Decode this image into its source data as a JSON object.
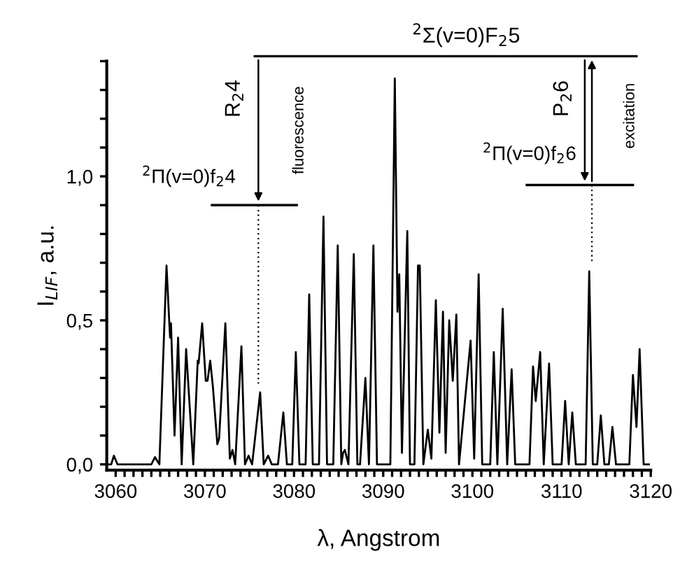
{
  "chart_data": {
    "type": "line",
    "xlabel": "λ, Angstrom",
    "ylabel": "I$_{LIF}$, a.u.",
    "annotations": [
      "$^{2}$Σ(v=0)F$_{2}$5",
      "R$_{2}$4",
      "fluorescence",
      "$^{2}$Π(v=0)f$_{2}$4",
      "P$_{2}$6",
      "excitation",
      "$^{2}$Π(v=0)f$_{2}$6"
    ],
    "xlim": [
      3059,
      3120
    ],
    "ylim": [
      -0.02,
      1.4
    ],
    "xticks": [
      3060,
      {
        "value": 3061,
        "label": null
      },
      {
        "value": 3062,
        "label": null
      },
      {
        "value": 3063,
        "label": null
      },
      {
        "value": 3064,
        "label": null
      },
      {
        "value": 3065,
        "label": null
      },
      {
        "value": 3066,
        "label": null
      },
      {
        "value": 3067,
        "label": null
      },
      {
        "value": 3068,
        "label": null
      },
      {
        "value": 3069,
        "label": null
      },
      3070,
      {
        "value": 3071,
        "label": null
      },
      {
        "value": 3072,
        "label": null
      },
      {
        "value": 3073,
        "label": null
      },
      {
        "value": 3074,
        "label": null
      },
      {
        "value": 3075,
        "label": null
      },
      {
        "value": 3076,
        "label": null
      },
      {
        "value": 3077,
        "label": null
      },
      {
        "value": 3078,
        "label": null
      },
      {
        "value": 3079,
        "label": null
      },
      3080,
      {
        "value": 3081,
        "label": null
      },
      {
        "value": 3082,
        "label": null
      },
      {
        "value": 3083,
        "label": null
      },
      {
        "value": 3084,
        "label": null
      },
      {
        "value": 3085,
        "label": null
      },
      {
        "value": 3086,
        "label": null
      },
      {
        "value": 3087,
        "label": null
      },
      {
        "value": 3088,
        "label": null
      },
      {
        "value": 3089,
        "label": null
      },
      3090,
      {
        "value": 3091,
        "label": null
      },
      {
        "value": 3092,
        "label": null
      },
      {
        "value": 3093,
        "label": null
      },
      {
        "value": 3094,
        "label": null
      },
      {
        "value": 3095,
        "label": null
      },
      {
        "value": 3096,
        "label": null
      },
      {
        "value": 3097,
        "label": null
      },
      {
        "value": 3098,
        "label": null
      },
      {
        "value": 3099,
        "label": null
      },
      3100,
      {
        "value": 3101,
        "label": null
      },
      {
        "value": 3102,
        "label": null
      },
      {
        "value": 3103,
        "label": null
      },
      {
        "value": 3104,
        "label": null
      },
      {
        "value": 3105,
        "label": null
      },
      {
        "value": 3106,
        "label": null
      },
      {
        "value": 3107,
        "label": null
      },
      {
        "value": 3108,
        "label": null
      },
      {
        "value": 3109,
        "label": null
      },
      3110,
      {
        "value": 3111,
        "label": null
      },
      {
        "value": 3112,
        "label": null
      },
      {
        "value": 3113,
        "label": null
      },
      {
        "value": 3114,
        "label": null
      },
      {
        "value": 3115,
        "label": null
      },
      {
        "value": 3116,
        "label": null
      },
      {
        "value": 3117,
        "label": null
      },
      {
        "value": 3118,
        "label": null
      },
      {
        "value": 3119,
        "label": null
      },
      3120
    ],
    "yticks": [
      {
        "value": 0,
        "label": "0,0"
      },
      {
        "value": 0.1,
        "label": null
      },
      {
        "value": 0.2,
        "label": null
      },
      {
        "value": 0.3,
        "label": null
      },
      {
        "value": 0.4,
        "label": null
      },
      {
        "value": 0.5,
        "label": "0,5"
      },
      {
        "value": 0.6,
        "label": null
      },
      {
        "value": 0.7,
        "label": null
      },
      {
        "value": 0.8,
        "label": null
      },
      {
        "value": 0.9,
        "label": null
      },
      {
        "value": 1.0,
        "label": "1,0"
      },
      {
        "value": 1.1,
        "label": null
      },
      {
        "value": 1.2,
        "label": null
      },
      {
        "value": 1.3,
        "label": null
      },
      {
        "value": 1.4,
        "label": null
      }
    ],
    "grid": false,
    "legend": false,
    "marker": "none",
    "line_style": "solid",
    "series": [
      {
        "color": "#000000",
        "x": [
          3059.0,
          3059.5,
          3059.8,
          3060.2,
          3064.0,
          3064.4,
          3064.9,
          3065.7,
          3066.0,
          3066.1,
          3066.2,
          3066.6,
          3067.0,
          3067.4,
          3067.9,
          3068.7,
          3069.2,
          3069.3,
          3069.7,
          3070.1,
          3070.3,
          3070.6,
          3070.9,
          3071.4,
          3071.6,
          3072.3,
          3072.8,
          3073.1,
          3073.4,
          3074.1,
          3074.5,
          3074.9,
          3075.3,
          3076.2,
          3076.6,
          3077.1,
          3077.5,
          3078.2,
          3078.8,
          3079.2,
          3079.8,
          3080.2,
          3080.6,
          3081.3,
          3081.7,
          3082.1,
          3082.8,
          3083.3,
          3083.7,
          3084.4,
          3084.9,
          3085.3,
          3085.5,
          3085.7,
          3086.1,
          3086.7,
          3087.1,
          3087.4,
          3088.0,
          3088.4,
          3088.9,
          3089.3,
          3090.8,
          3091.3,
          3091.6,
          3091.8,
          3092.1,
          3092.7,
          3093.0,
          3093.5,
          3093.9,
          3094.1,
          3094.5,
          3095.0,
          3095.4,
          3095.9,
          3096.3,
          3096.7,
          3097.0,
          3097.4,
          3097.8,
          3098.2,
          3098.5,
          3099.8,
          3100.2,
          3100.7,
          3101.1,
          3102.0,
          3102.4,
          3102.8,
          3103.4,
          3103.9,
          3104.4,
          3104.8,
          3106.4,
          3106.8,
          3107.1,
          3107.6,
          3108.0,
          3108.6,
          3109.0,
          3110.0,
          3110.4,
          3110.8,
          3111.2,
          3111.6,
          3112.7,
          3113.1,
          3113.5,
          3114.0,
          3114.4,
          3114.8,
          3115.3,
          3115.7,
          3116.1,
          3117.6,
          3118.0,
          3118.4,
          3118.75,
          3119.2,
          3119.8
        ],
        "values": [
          0.0,
          0.0,
          0.03,
          0.0,
          0.0,
          0.025,
          0.0,
          0.69,
          0.5,
          0.44,
          0.49,
          0.1,
          0.44,
          0.0,
          0.4,
          0.0,
          0.36,
          0.35,
          0.49,
          0.29,
          0.29,
          0.36,
          0.27,
          0.07,
          0.09,
          0.49,
          0.02,
          0.05,
          0.0,
          0.41,
          0.0,
          0.03,
          0.0,
          0.25,
          0.0,
          0.03,
          0.0,
          0.0,
          0.18,
          0.0,
          0.0,
          0.39,
          0.0,
          0.0,
          0.59,
          0.0,
          0.0,
          0.86,
          0.0,
          0.0,
          0.76,
          0.0,
          0.04,
          0.05,
          0.0,
          0.73,
          0.0,
          0.0,
          0.3,
          0.0,
          0.76,
          0.0,
          0.0,
          1.34,
          0.53,
          0.66,
          0.04,
          0.81,
          0.0,
          0.0,
          0.69,
          0.69,
          0.0,
          0.12,
          0.02,
          0.57,
          0.11,
          0.53,
          0.04,
          0.5,
          0.29,
          0.52,
          0.0,
          0.43,
          0.02,
          0.66,
          0.0,
          0.0,
          0.39,
          0.0,
          0.54,
          0.0,
          0.33,
          0.0,
          0.0,
          0.34,
          0.22,
          0.39,
          0.0,
          0.35,
          0.0,
          0.0,
          0.22,
          0.0,
          0.18,
          0.0,
          0.0,
          0.67,
          0.0,
          0.0,
          0.17,
          0.0,
          0.0,
          0.13,
          0.0,
          0.0,
          0.31,
          0.13,
          0.4,
          0.0,
          0.0
        ]
      }
    ]
  }
}
